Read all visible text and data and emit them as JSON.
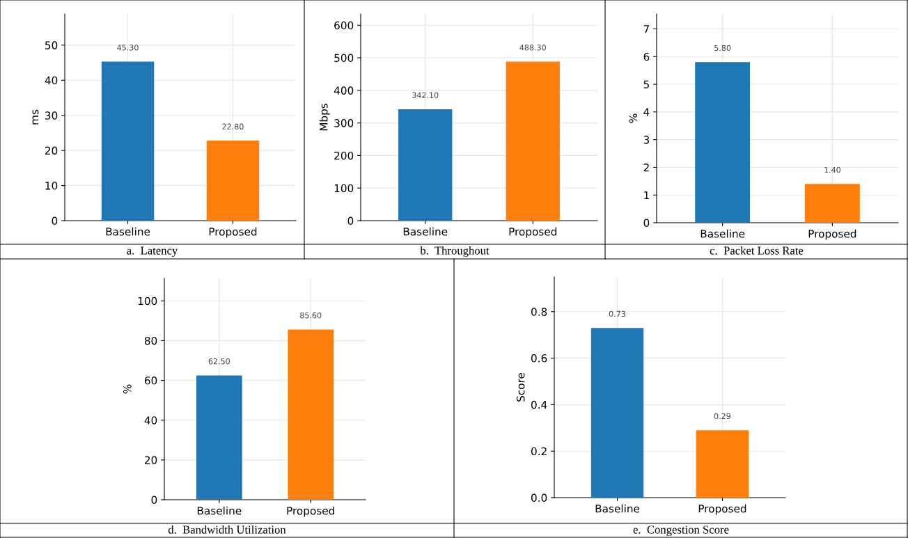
{
  "chart_data": [
    {
      "type": "bar",
      "categories": [
        "Baseline",
        "Proposed"
      ],
      "values": [
        45.3,
        22.8
      ],
      "colors": [
        "#1f77b4",
        "#ff7f0e"
      ],
      "ylabel": "ms",
      "ylim": [
        0,
        58.9
      ],
      "yticks": [
        0,
        10,
        20,
        30,
        40,
        50
      ],
      "grid": true,
      "value_labels": [
        "45.30",
        "22.80"
      ],
      "annotations": [
        "a.  Latency"
      ]
    },
    {
      "type": "bar",
      "categories": [
        "Baseline",
        "Proposed"
      ],
      "values": [
        342.1,
        488.3
      ],
      "colors": [
        "#1f77b4",
        "#ff7f0e"
      ],
      "ylabel": "Mbps",
      "ylim": [
        0,
        634.8
      ],
      "yticks": [
        0,
        100,
        200,
        300,
        400,
        500,
        600
      ],
      "grid": true,
      "value_labels": [
        "342.10",
        "488.30"
      ],
      "annotations": [
        "b.  Throughout"
      ]
    },
    {
      "type": "bar",
      "categories": [
        "Baseline",
        "Proposed"
      ],
      "values": [
        5.8,
        1.4
      ],
      "colors": [
        "#1f77b4",
        "#ff7f0e"
      ],
      "ylabel": "%",
      "ylim": [
        0,
        7.54
      ],
      "yticks": [
        0,
        1,
        2,
        3,
        4,
        5,
        6,
        7
      ],
      "grid": true,
      "value_labels": [
        "5.80",
        "1.40"
      ],
      "annotations": [
        "c.  Packet Loss Rate"
      ]
    },
    {
      "type": "bar",
      "categories": [
        "Baseline",
        "Proposed"
      ],
      "values": [
        62.5,
        85.6
      ],
      "colors": [
        "#1f77b4",
        "#ff7f0e"
      ],
      "ylabel": "%",
      "ylim": [
        0,
        111.3
      ],
      "yticks": [
        0,
        20,
        40,
        60,
        80,
        100
      ],
      "grid": true,
      "value_labels": [
        "62.50",
        "85.60"
      ],
      "annotations": [
        "d.  Bandwidth Utilization"
      ]
    },
    {
      "type": "bar",
      "categories": [
        "Baseline",
        "Proposed"
      ],
      "values": [
        0.73,
        0.29
      ],
      "colors": [
        "#1f77b4",
        "#ff7f0e"
      ],
      "ylabel": "Score",
      "ylim": [
        0,
        0.949
      ],
      "yticks": [
        {
          "value": 0,
          "label": "0.0"
        },
        0.2,
        0.4,
        0.6,
        0.8
      ],
      "grid": true,
      "value_labels": [
        "0.73",
        "0.29"
      ],
      "annotations": [
        "e.  Congestion Score"
      ]
    }
  ]
}
